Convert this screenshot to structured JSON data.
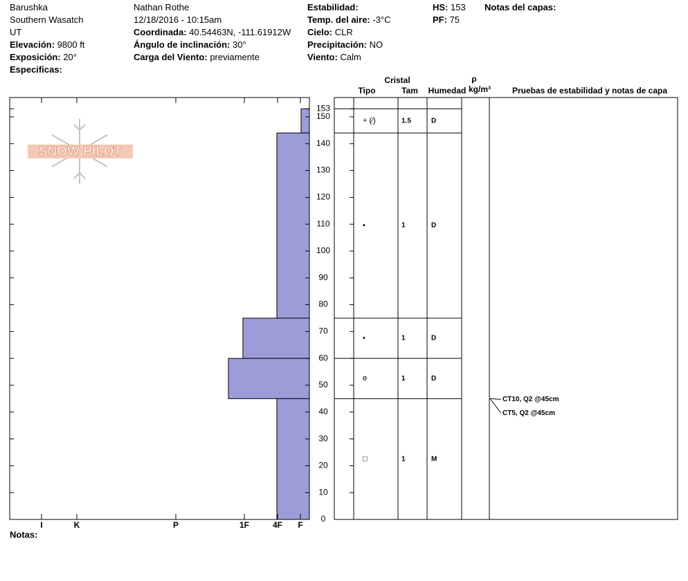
{
  "header": {
    "columns": [
      [
        {
          "value": "Barushka"
        },
        {
          "value": "Southern Wasatch"
        },
        {
          "value": "UT"
        },
        {
          "label": "Elevación:",
          "value": "9800 ft"
        },
        {
          "label": "Exposición:",
          "value": "20°"
        },
        {
          "label": "Especificas:"
        }
      ],
      [
        {
          "value": "Nathan Rothe"
        },
        {
          "value": "12/18/2016 - 10:15am"
        },
        {
          "label": "Coordinada:",
          "value": "40.54463N, -111.61912W"
        },
        {
          "label": "Ángulo de inclinación:",
          "value": "30°"
        },
        {
          "label": "Carga del Viento:",
          "value": "previamente"
        }
      ],
      [
        {
          "label": "Estabilidad:"
        },
        {
          "label": "Temp. del aire:",
          "value": "-3°C"
        },
        {
          "label": "Cielo:",
          "value": "CLR"
        },
        {
          "label": "Precipitación:",
          "value": "NO"
        },
        {
          "label": "Viento:",
          "value": "Calm"
        }
      ],
      [
        {
          "label": "HS:",
          "value": "153"
        },
        {
          "label": "PF:",
          "value": "75"
        }
      ],
      [
        {
          "label": "Notas del capas:"
        }
      ]
    ]
  },
  "logo": "SNOW PILOT",
  "notes_label": "Notas:",
  "chart_data": {
    "type": "profile",
    "color": "#9c9cd8",
    "xlim": [
      433,
      0
    ],
    "xticks": [
      {
        "value": 387,
        "label": "I"
      },
      {
        "value": 336,
        "label": "K"
      },
      {
        "value": 193,
        "label": "P"
      },
      {
        "value": 94,
        "label": "1F"
      },
      {
        "value": 46,
        "label": "4F"
      },
      {
        "value": 13,
        "label": "F"
      }
    ],
    "ylim": [
      0,
      157.2
    ],
    "yticks": [
      0,
      10,
      20,
      30,
      40,
      50,
      60,
      70,
      80,
      90,
      100,
      110,
      120,
      130,
      140,
      150,
      153
    ],
    "layers": [
      {
        "bottom": 144,
        "top": 153,
        "hardness": 12,
        "crystal": "+ (⁄)",
        "size": 1.5,
        "moisture": "D"
      },
      {
        "bottom": 75,
        "top": 144,
        "hardness": 47,
        "crystal": "•",
        "size": 1,
        "moisture": "D"
      },
      {
        "bottom": 60,
        "top": 75,
        "hardness": 96,
        "crystal": "•",
        "size": 1,
        "moisture": "D"
      },
      {
        "bottom": 45,
        "top": 60,
        "hardness": 117,
        "crystal": "ө",
        "size": 1,
        "moisture": "D"
      },
      {
        "bottom": 0,
        "top": 45,
        "hardness": 47,
        "crystal": "□",
        "size": 1,
        "moisture": "M"
      }
    ],
    "table_headers": {
      "crystal": "Cristal",
      "type": "Tipo",
      "size": "Tam",
      "moisture": "Humedad",
      "density": "ρ",
      "density_unit": "kg/m³",
      "tests": "Pruebas de estabilidad y notas de capa"
    },
    "tests": [
      {
        "label": "CT10, Q2 @45cm",
        "depth": 45
      },
      {
        "label": "CT5, Q2 @45cm",
        "depth": 45
      }
    ]
  }
}
